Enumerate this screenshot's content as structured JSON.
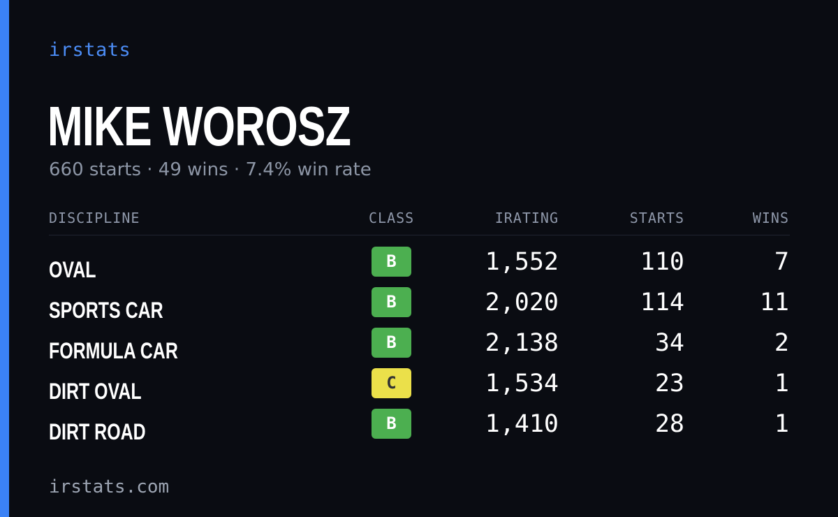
{
  "brand": "irstats",
  "driver_name": "MIKE WOROSZ",
  "summary": "660 starts · 49 wins · 7.4% win rate",
  "columns": {
    "discipline": "DISCIPLINE",
    "class": "CLASS",
    "irating": "IRATING",
    "starts": "STARTS",
    "wins": "WINS"
  },
  "rows": [
    {
      "discipline": "OVAL",
      "class": "B",
      "irating": "1,552",
      "starts": "110",
      "wins": "7"
    },
    {
      "discipline": "SPORTS CAR",
      "class": "B",
      "irating": "2,020",
      "starts": "114",
      "wins": "11"
    },
    {
      "discipline": "FORMULA CAR",
      "class": "B",
      "irating": "2,138",
      "starts": "34",
      "wins": "2"
    },
    {
      "discipline": "DIRT OVAL",
      "class": "C",
      "irating": "1,534",
      "starts": "23",
      "wins": "1"
    },
    {
      "discipline": "DIRT ROAD",
      "class": "B",
      "irating": "1,410",
      "starts": "28",
      "wins": "1"
    }
  ],
  "footer": "irstats.com",
  "colors": {
    "background": "#0a0c12",
    "accent": "#3b82f6",
    "class_b_bg": "#4caf50",
    "class_b_text": "#ffffff",
    "class_c_bg": "#ebe04a",
    "class_c_text": "#333333"
  }
}
